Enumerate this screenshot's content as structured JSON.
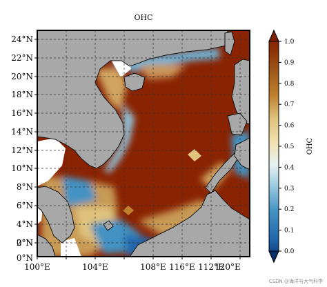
{
  "title": "OHC",
  "lon_labels": [
    "100°E",
    "104°E",
    "108°E",
    "112°E",
    "116°E",
    "120°E"
  ],
  "lat_labels": [
    "0°N",
    "2°N",
    "4°N",
    "6°N",
    "8°N",
    "10°N",
    "12°N",
    "14°N",
    "16°N",
    "18°N",
    "20°N",
    "22°N",
    "24°N"
  ],
  "colorbar": {
    "label": "OHC",
    "ticks": [
      "0.0",
      "0.1",
      "0.2",
      "0.3",
      "0.4",
      "0.5",
      "0.6",
      "0.7",
      "0.8",
      "0.9",
      "1.0"
    ],
    "colors": [
      "#08306b",
      "#2166ac",
      "#4393c3",
      "#92c5de",
      "#d1e5f0",
      "#f6e8c3",
      "#dfc27d",
      "#bf812d",
      "#a05a1a",
      "#8c2d04",
      "#7f1f00"
    ]
  },
  "colors": {
    "land": "#a8a8a8",
    "ocean_high": "#8a2302",
    "nan_area": "#ffffff",
    "grid": "#333333"
  },
  "watermark": "CSDN @海洋与大气科学"
}
